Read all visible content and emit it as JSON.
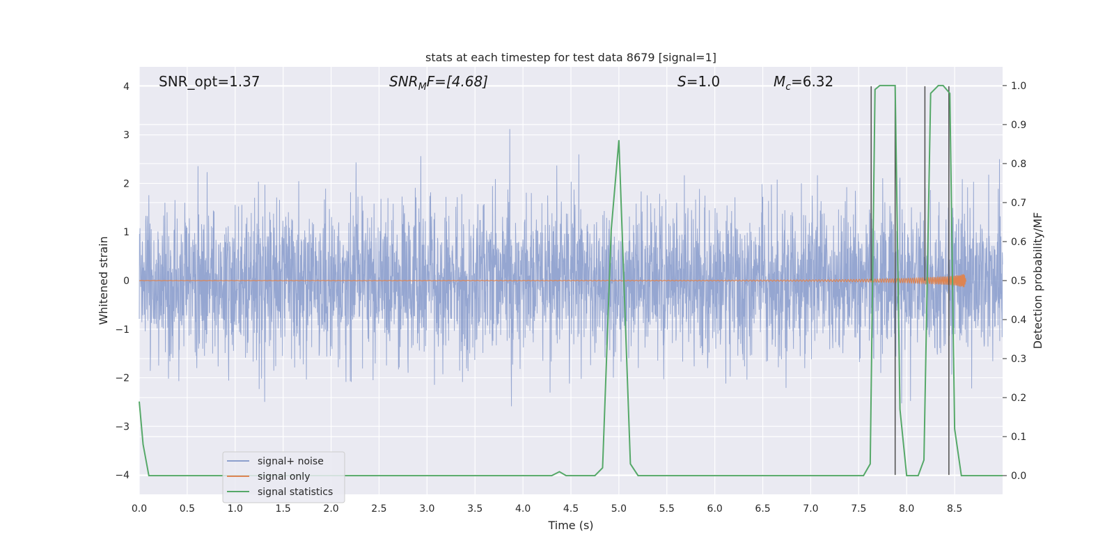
{
  "chart_data": {
    "type": "line",
    "title": "stats at each timestep for test data 8679 [signal=1]",
    "xlabel": "Time (s)",
    "ylabel": "Whitened strain",
    "ylabel_right": "Detection probability/MF",
    "xlim": [
      0.0,
      9.0
    ],
    "ylim": [
      -4.4,
      4.4
    ],
    "ylim_right": [
      -0.048,
      1.048
    ],
    "x_ticks": [
      "0.0",
      "0.5",
      "1.0",
      "1.5",
      "2.0",
      "2.5",
      "3.0",
      "3.5",
      "4.0",
      "4.5",
      "5.0",
      "5.5",
      "6.0",
      "6.5",
      "7.0",
      "7.5",
      "8.0",
      "8.5"
    ],
    "y_ticks": [
      "−4",
      "−3",
      "−2",
      "−1",
      "0",
      "1",
      "2",
      "3",
      "4"
    ],
    "y_right_ticks": [
      "0.0",
      "0.1",
      "0.2",
      "0.3",
      "0.4",
      "0.5",
      "0.6",
      "0.7",
      "0.8",
      "0.9",
      "1.0"
    ],
    "grid": true,
    "legend_position": "lower-left",
    "annotations": {
      "snr_opt": "SNR_opt=1.37",
      "snr_mf_sym": "SNR",
      "snr_mf_sub": "M",
      "snr_mf_rest": "F=[4.68]",
      "s_sym": "S",
      "s_rest": "=1.0",
      "mc_sym": "M",
      "mc_sub": "c",
      "mc_rest": "=6.32"
    },
    "series": [
      {
        "name": "signal+ noise",
        "color": "#8c9fcd",
        "style": "noise",
        "sample_rate_per_s": 400,
        "sigma": 0.78,
        "x_range": [
          0.0,
          9.0
        ]
      },
      {
        "name": "signal only",
        "color": "#dd8452",
        "style": "chirp",
        "x_range": [
          0.0,
          8.62
        ],
        "envelope": {
          "x": [
            0.0,
            6.0,
            7.0,
            7.5,
            8.0,
            8.3,
            8.5,
            8.6,
            8.62
          ],
          "y": [
            0.003,
            0.008,
            0.015,
            0.025,
            0.045,
            0.07,
            0.1,
            0.14,
            0.0
          ]
        }
      },
      {
        "name": "signal statistics",
        "color": "#55a868",
        "axis": "right",
        "x": [
          0.0,
          0.04,
          0.1,
          0.15,
          4.3,
          4.38,
          4.45,
          4.5,
          4.75,
          4.83,
          4.92,
          5.0,
          5.12,
          5.2,
          7.55,
          7.62,
          7.67,
          7.72,
          7.78,
          7.88,
          7.93,
          8.0,
          8.12,
          8.18,
          8.25,
          8.33,
          8.38,
          8.45,
          8.5,
          8.57,
          8.65,
          9.0
        ],
        "y": [
          0.19,
          0.08,
          0.0,
          0.0,
          0.0,
          0.01,
          0.0,
          0.0,
          0.0,
          0.02,
          0.63,
          0.86,
          0.03,
          0.0,
          0.0,
          0.03,
          0.99,
          1.0,
          1.0,
          1.0,
          0.17,
          0.0,
          0.0,
          0.04,
          0.98,
          1.0,
          1.0,
          0.98,
          0.12,
          0.0,
          0.0,
          0.0
        ]
      }
    ],
    "vertical_lines": {
      "color": "#555555",
      "lines": [
        {
          "x": 7.63,
          "y_top": 4.0,
          "y_bottom": 0.0
        },
        {
          "x": 7.88,
          "y_top": 4.0,
          "y_bottom": -4.0
        },
        {
          "x": 8.19,
          "y_top": 4.0,
          "y_bottom": 0.0
        },
        {
          "x": 8.44,
          "y_top": 4.0,
          "y_bottom": -4.0
        }
      ]
    }
  }
}
